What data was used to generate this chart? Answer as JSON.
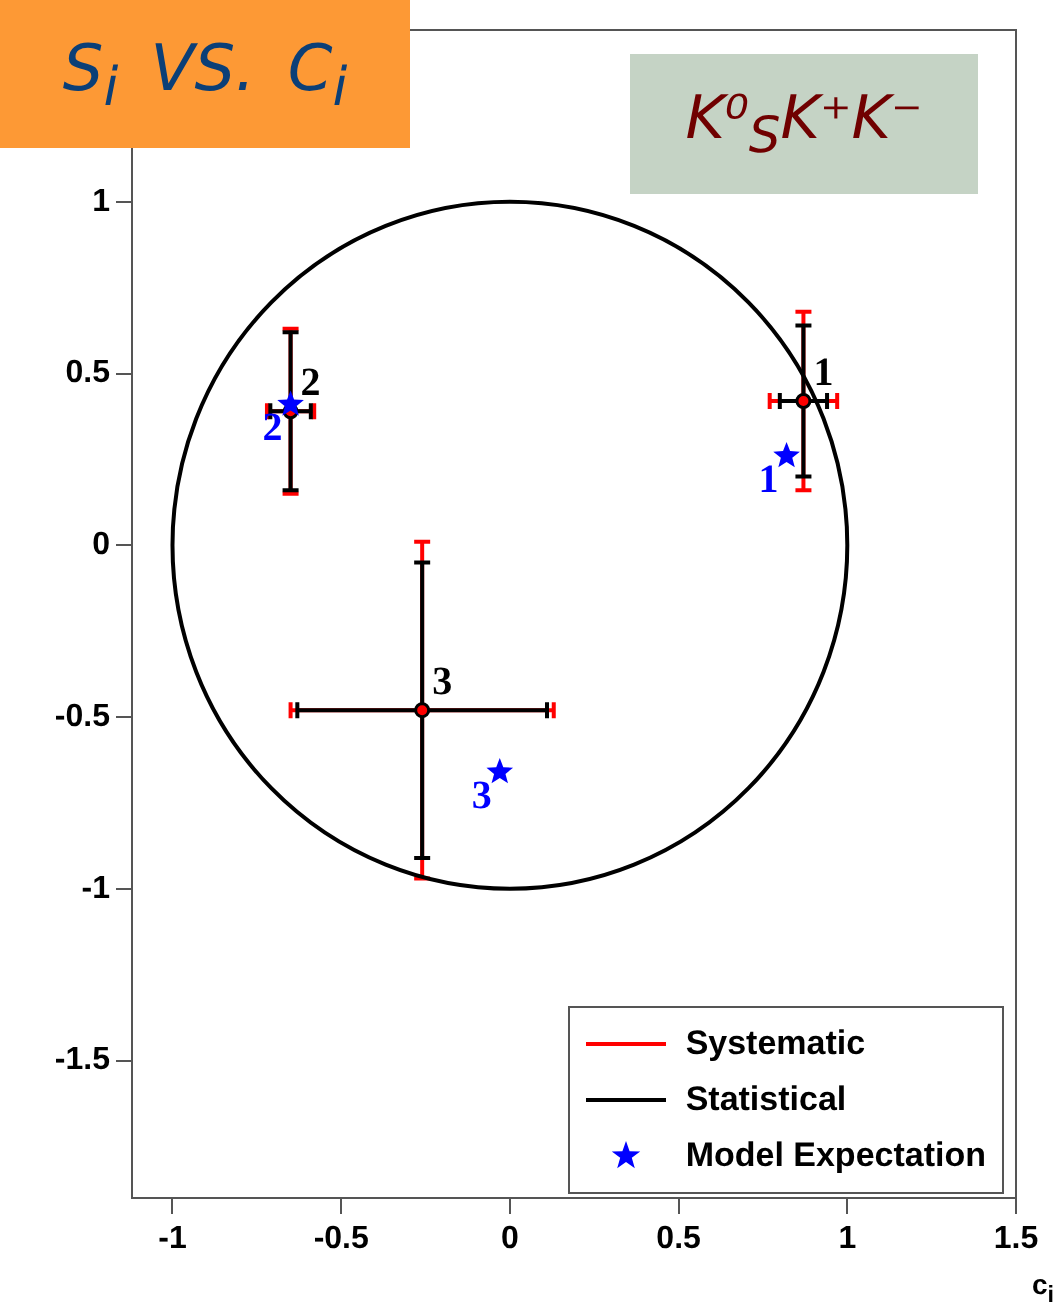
{
  "chart_data": {
    "type": "scatter",
    "title": "S$_{i}$ VS. C$_{i}$",
    "xlabel": "c$_{i}$",
    "annotations": [
      "K⁰$_{S}$K⁺K⁻",
      {
        "text": "1",
        "x": 0.87,
        "y": 0.42
      },
      {
        "text": "2",
        "x": -0.65,
        "y": 0.39
      },
      {
        "text": "3",
        "x": -0.26,
        "y": -0.48
      },
      {
        "text": "1",
        "x": 0.82,
        "y": 0.26
      },
      {
        "text": "2",
        "x": -0.65,
        "y": 0.41
      },
      {
        "text": "3",
        "x": -0.03,
        "y": -0.66
      }
    ],
    "series": [
      {
        "name": "Systematic",
        "color": "#ff0000",
        "marker": "circle",
        "x": [
          0.87,
          -0.65,
          -0.26
        ],
        "values": [
          0.42,
          0.39,
          -0.48
        ],
        "errors": [
          0.26,
          0.24,
          0.49
        ],
        "xerrors": [
          0.1,
          0.07,
          0.39
        ]
      },
      {
        "name": "Statistical",
        "color": "#000000",
        "marker": "circle",
        "x": [
          0.87,
          -0.65,
          -0.26
        ],
        "values": [
          0.42,
          0.39,
          -0.48
        ],
        "errors": [
          0.22,
          0.23,
          0.43
        ],
        "xerrors": [
          0.07,
          0.06,
          0.37
        ]
      },
      {
        "name": "Model Expectation",
        "color": "#0000ff",
        "marker": "star",
        "x": [
          0.82,
          -0.65,
          -0.03
        ],
        "values": [
          0.26,
          0.41,
          -0.66
        ]
      }
    ],
    "xlim": [
      -1.12,
      1.5
    ],
    "xticks": [
      -1,
      -0.5,
      0,
      0.5,
      1,
      1.5
    ],
    "ylim": [
      -1.9,
      1.5
    ],
    "yticks": [
      -1.5,
      -1,
      -0.5,
      0,
      0.5,
      1
    ],
    "grid": false,
    "legend": "bottom right"
  }
}
